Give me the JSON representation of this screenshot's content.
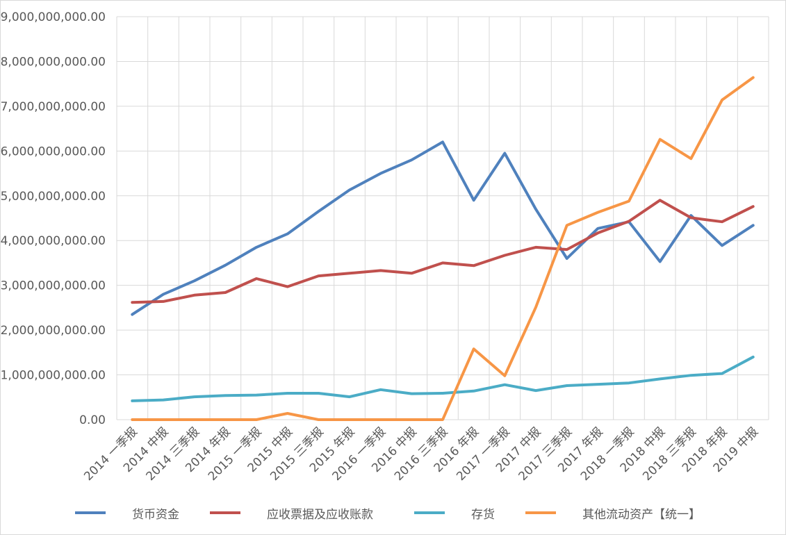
{
  "chart_data": {
    "type": "line",
    "title": "",
    "xlabel": "",
    "ylabel": "",
    "ylim": [
      0,
      9000000000
    ],
    "yticks": [
      "0.00",
      "1,000,000,000.00",
      "2,000,000,000.00",
      "3,000,000,000.00",
      "4,000,000,000.00",
      "5,000,000,000.00",
      "6,000,000,000.00",
      "7,000,000,000.00",
      "8,000,000,000.00",
      "9,000,000,000.00"
    ],
    "grid": true,
    "legend_position": "bottom",
    "categories": [
      "2014 一季报",
      "2014 中报",
      "2014 三季报",
      "2014 年报",
      "2015 一季报",
      "2015 中报",
      "2015 三季报",
      "2015 年报",
      "2016 一季报",
      "2016 中报",
      "2016 三季报",
      "2016 年报",
      "2017 一季报",
      "2017 中报",
      "2017 三季报",
      "2017 年报",
      "2018 一季报",
      "2018 中报",
      "2018 三季报",
      "2018 年报",
      "2019 中报"
    ],
    "series": [
      {
        "name": "货币资金",
        "color": "#4F81BD",
        "values": [
          2350000000,
          2800000000,
          3100000000,
          3450000000,
          3850000000,
          4150000000,
          4650000000,
          5130000000,
          5500000000,
          5800000000,
          6200000000,
          4900000000,
          5950000000,
          4700000000,
          3600000000,
          4270000000,
          4420000000,
          3530000000,
          4560000000,
          3890000000,
          4340000000
        ]
      },
      {
        "name": "应收票据及应收账款",
        "color": "#C0504D",
        "values": [
          2620000000,
          2640000000,
          2780000000,
          2840000000,
          3150000000,
          2970000000,
          3210000000,
          3270000000,
          3330000000,
          3270000000,
          3500000000,
          3440000000,
          3670000000,
          3850000000,
          3800000000,
          4170000000,
          4430000000,
          4900000000,
          4510000000,
          4420000000,
          4760000000
        ]
      },
      {
        "name": "存货",
        "color": "#4BACC6",
        "values": [
          420000000,
          440000000,
          510000000,
          540000000,
          550000000,
          590000000,
          590000000,
          510000000,
          670000000,
          580000000,
          590000000,
          640000000,
          780000000,
          650000000,
          760000000,
          790000000,
          820000000,
          910000000,
          990000000,
          1030000000,
          1400000000
        ]
      },
      {
        "name": "其他流动资产【统一】",
        "color": "#F79646",
        "values": [
          0,
          0,
          0,
          0,
          0,
          140000000,
          0,
          0,
          0,
          0,
          0,
          1580000000,
          980000000,
          2510000000,
          4340000000,
          4630000000,
          4880000000,
          6260000000,
          5830000000,
          7140000000,
          7640000000
        ]
      }
    ]
  }
}
